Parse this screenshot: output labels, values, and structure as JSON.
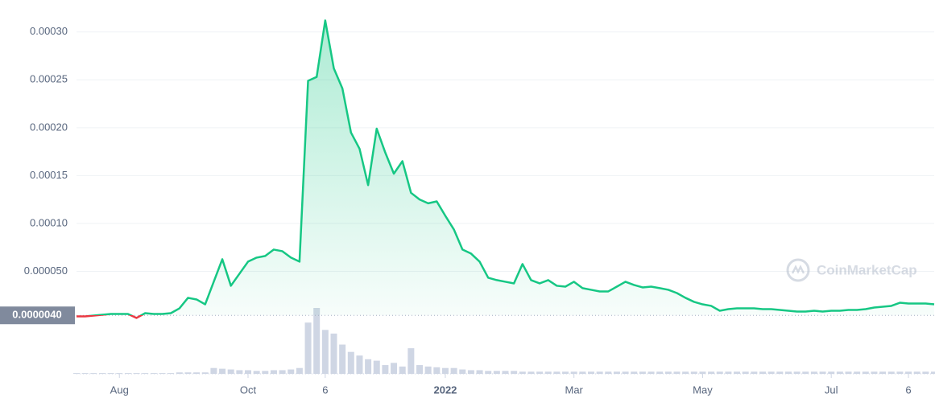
{
  "chart_data": {
    "type": "area_line",
    "categories": [
      null,
      null,
      null,
      null,
      null,
      "Aug",
      null,
      null,
      null,
      null,
      null,
      null,
      null,
      null,
      null,
      null,
      null,
      null,
      null,
      null,
      "Oct",
      null,
      null,
      null,
      null,
      null,
      null,
      null,
      null,
      "6",
      null,
      null,
      null,
      null,
      null,
      null,
      null,
      null,
      null,
      null,
      null,
      null,
      null,
      "2022",
      null,
      null,
      null,
      null,
      null,
      null,
      null,
      null,
      null,
      null,
      null,
      null,
      null,
      null,
      "Mar",
      null,
      null,
      null,
      null,
      null,
      null,
      null,
      null,
      null,
      null,
      null,
      null,
      null,
      null,
      "May",
      null,
      null,
      null,
      null,
      null,
      null,
      null,
      null,
      null,
      null,
      null,
      null,
      null,
      null,
      "Jul",
      null,
      null,
      null,
      null,
      null,
      null,
      null,
      null,
      "6",
      null,
      null,
      null
    ],
    "values": [
      2.9e-06,
      2.9e-06,
      3.8e-06,
      4.6e-06,
      5.5e-06,
      5.5e-06,
      5.5e-06,
      1.3e-06,
      6.3e-06,
      5.5e-06,
      5.5e-06,
      6.3e-06,
      1.13e-05,
      2.23e-05,
      2.06e-05,
      1.55e-05,
      3.91e-05,
      6.26e-05,
      3.49e-05,
      4.75e-05,
      6.01e-05,
      6.43e-05,
      6.6e-05,
      7.27e-05,
      7.1e-05,
      6.43e-05,
      6.01e-05,
      0.000249,
      0.000253,
      0.000312,
      0.000262,
      0.000241,
      0.000195,
      0.000178,
      0.00014,
      0.000199,
      0.000174,
      0.000152,
      0.000165,
      0.000132,
      0.000125,
      0.000121,
      0.000123,
      0.000108,
      9.37e-05,
      7.27e-05,
      6.85e-05,
      6.01e-05,
      4.33e-05,
      4.08e-05,
      3.91e-05,
      3.74e-05,
      5.76e-05,
      4.08e-05,
      3.74e-05,
      4.08e-05,
      3.49e-05,
      3.4e-05,
      3.91e-05,
      3.24e-05,
      3.07e-05,
      2.9e-05,
      2.9e-05,
      3.4e-05,
      3.91e-05,
      3.57e-05,
      3.32e-05,
      3.4e-05,
      3.24e-05,
      3.07e-05,
      2.73e-05,
      2.23e-05,
      1.81e-05,
      1.55e-05,
      1.39e-05,
      8.8e-06,
      1.05e-05,
      1.13e-05,
      1.13e-05,
      1.13e-05,
      1.05e-05,
      1.05e-05,
      9.7e-06,
      8.8e-06,
      8e-06,
      8e-06,
      8.8e-06,
      8e-06,
      8.8e-06,
      8.8e-06,
      9.7e-06,
      9.7e-06,
      1.05e-05,
      1.22e-05,
      1.3e-05,
      1.39e-05,
      1.72e-05,
      1.64e-05,
      1.64e-05,
      1.64e-05,
      1.55e-05
    ],
    "volume": [
      1,
      1,
      1,
      1,
      1,
      1,
      1,
      1,
      1,
      1,
      1,
      1,
      2,
      2,
      2,
      2,
      8,
      7,
      6,
      5,
      5,
      4,
      4,
      5,
      5,
      6,
      8,
      70,
      90,
      60,
      55,
      40,
      30,
      25,
      20,
      18,
      12,
      15,
      10,
      35,
      12,
      10,
      9,
      8,
      8,
      6,
      5,
      5,
      4,
      4,
      4,
      4,
      3,
      3,
      3,
      3,
      3,
      3,
      3,
      3,
      3,
      3,
      3,
      3,
      3,
      3,
      3,
      3,
      3,
      3,
      3,
      3,
      3,
      3,
      3,
      3,
      3,
      3,
      3,
      3,
      3,
      3,
      3,
      3,
      3,
      3,
      3,
      3,
      3,
      3,
      3,
      3,
      3,
      3,
      3,
      3,
      3,
      3,
      3,
      3,
      3
    ],
    "color": "#16c784",
    "down_color": "#ea3943",
    "volume_color": "#cfd6e4",
    "ylim": [
      0,
      0.00033
    ],
    "yticks": [
      {
        "value": 5e-05,
        "label": "0.000050"
      },
      {
        "value": 0.0001,
        "label": "0.00010"
      },
      {
        "value": 0.00015,
        "label": "0.00015"
      },
      {
        "value": 0.0002,
        "label": "0.00020"
      },
      {
        "value": 0.00025,
        "label": "0.00025"
      },
      {
        "value": 0.0003,
        "label": "0.00030"
      }
    ],
    "baseline": {
      "value": 4e-06,
      "label": "0.0000040"
    },
    "grid": true,
    "watermark": "CoinMarketCap"
  }
}
